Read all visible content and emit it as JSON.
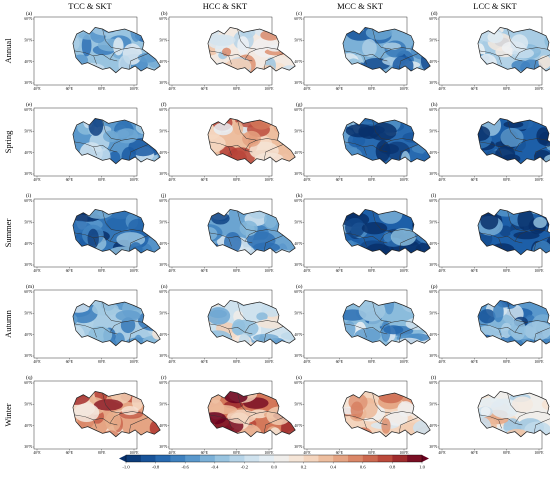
{
  "columns": [
    "TCC & SKT",
    "HCC & SKT",
    "MCC & SKT",
    "LCC & SKT"
  ],
  "rows": [
    "Annual",
    "Spring",
    "Summer",
    "Autumn",
    "Winter"
  ],
  "panel_labels": [
    "(a)",
    "(b)",
    "(c)",
    "(d)",
    "(e)",
    "(f)",
    "(g)",
    "(h)",
    "(i)",
    "(j)",
    "(k)",
    "(l)",
    "(m)",
    "(n)",
    "(o)",
    "(p)",
    "(q)",
    "(r)",
    "(s)",
    "(t)"
  ],
  "lon_ticks": [
    "40°E",
    "60°E",
    "80°E",
    "100°E"
  ],
  "lat_ticks": [
    "60°N",
    "50°N",
    "40°N",
    "30°N"
  ],
  "colorbar": {
    "ticks": [
      "-1.0",
      "-0.8",
      "-0.6",
      "-0.4",
      "-0.2",
      "0.0",
      "0.2",
      "0.4",
      "0.6",
      "0.8",
      "1.0"
    ],
    "range": [
      -1.0,
      1.0
    ],
    "colors": [
      "#08306b",
      "#1d5fa8",
      "#4a8cc6",
      "#8bbcdc",
      "#c4dcec",
      "#eef2f5",
      "#f7e0cd",
      "#eab390",
      "#d4785a",
      "#b23a32",
      "#67001f"
    ]
  },
  "panel_mean_corr": [
    [
      -0.35,
      0.1,
      -0.45,
      -0.3
    ],
    [
      -0.55,
      0.35,
      -0.75,
      -0.8
    ],
    [
      -0.7,
      -0.5,
      -0.8,
      -0.8
    ],
    [
      -0.3,
      -0.15,
      -0.4,
      -0.55
    ],
    [
      0.45,
      0.6,
      0.25,
      0.05
    ]
  ]
}
